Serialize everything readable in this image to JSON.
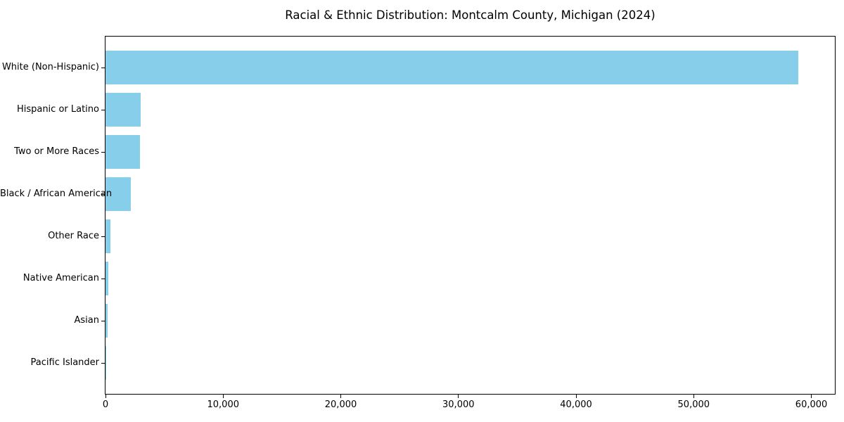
{
  "chart_data": {
    "type": "bar",
    "orientation": "horizontal",
    "title": "Racial & Ethnic Distribution: Montcalm County, Michigan (2024)",
    "categories": [
      "White (Non-Hispanic)",
      "Hispanic or Latino",
      "Two or More Races",
      "Black / African American",
      "Other Race",
      "Native American",
      "Asian",
      "Pacific Islander"
    ],
    "values": [
      58900,
      3000,
      2950,
      2150,
      420,
      220,
      200,
      20
    ],
    "xlabel": "",
    "ylabel": "",
    "xlim": [
      0,
      62000
    ],
    "xticks": [
      0,
      10000,
      20000,
      30000,
      40000,
      50000,
      60000
    ],
    "xtick_labels": [
      "0",
      "10,000",
      "20,000",
      "30,000",
      "40,000",
      "50,000",
      "60,000"
    ],
    "bar_color": "#87CEEB",
    "axis_color": "#000000",
    "background": "#FFFFFF",
    "grid": false,
    "legend": "none"
  }
}
